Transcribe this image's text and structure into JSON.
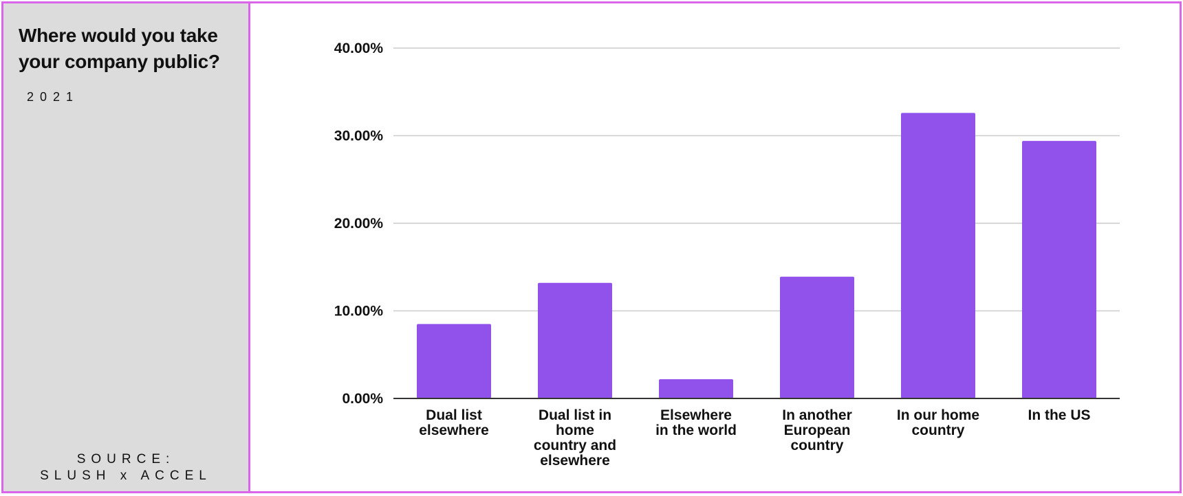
{
  "sidebar": {
    "title": "Where would you take your company public?",
    "year": "2021",
    "source_line1": "SOURCE:",
    "source_line2": "SLUSH x ACCEL"
  },
  "colors": {
    "bar": "#9152ec",
    "border": "#d966e8",
    "sidebar_bg": "#dcdcdc",
    "grid": "#cccccc",
    "axis": "#333333"
  },
  "chart_data": {
    "type": "bar",
    "categories": [
      [
        "Dual list",
        "elsewhere"
      ],
      [
        "Dual list in",
        "home",
        "country and",
        "elsewhere"
      ],
      [
        "Elsewhere",
        "in the world"
      ],
      [
        "In another",
        "European",
        "country"
      ],
      [
        "In our home",
        "country"
      ],
      [
        "In the US"
      ]
    ],
    "values": [
      8.5,
      13.2,
      2.2,
      13.9,
      32.6,
      29.4
    ],
    "yticks": [
      "0.00%",
      "10.00%",
      "20.00%",
      "30.00%",
      "40.00%"
    ],
    "ylim": [
      0,
      40
    ],
    "grid": true,
    "legend": "none",
    "xlabel": "",
    "ylabel": ""
  }
}
